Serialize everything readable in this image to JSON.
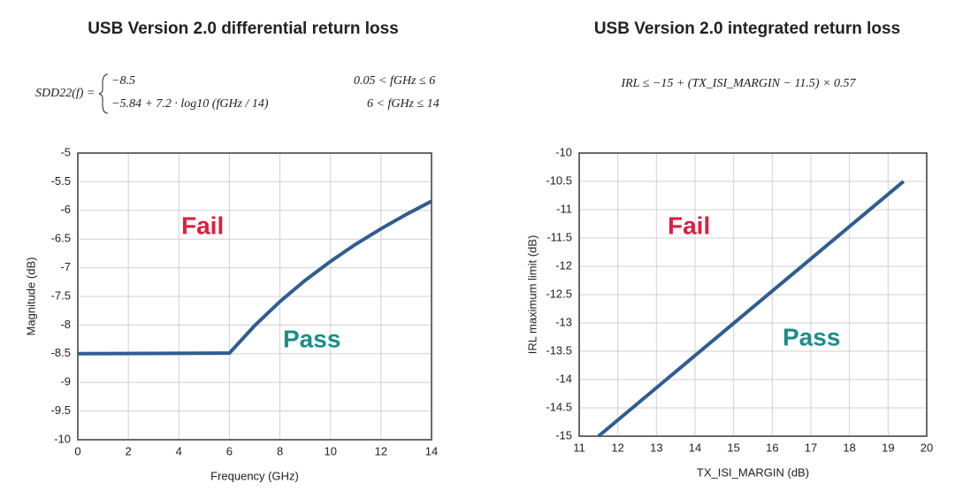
{
  "chart_data": [
    {
      "type": "line",
      "title": "USB Version 2.0 differential return loss",
      "formula": [
        "SDD22(f) =",
        "−8.5",
        "0.05 < fGHz ≤ 6",
        "−5.84 + 7.2 · log10 (fGHz / 14)",
        "6 < fGHz ≤ 14"
      ],
      "x": [
        0,
        6,
        7,
        8,
        9,
        10,
        11,
        12,
        13,
        14
      ],
      "series": [
        {
          "color": "#2f5d8f",
          "values": [
            -8.5,
            -8.49,
            -8.01,
            -7.59,
            -7.22,
            -6.89,
            -6.59,
            -6.32,
            -6.07,
            -5.84
          ]
        }
      ],
      "xlim": [
        0,
        14
      ],
      "xticks": [
        0,
        2,
        4,
        6,
        8,
        10,
        12,
        14
      ],
      "ylim": [
        -10,
        -5
      ],
      "yticks": [
        -5,
        -5.5,
        -6,
        -6.5,
        -7,
        -7.5,
        -8,
        -8.5,
        -9,
        -9.5,
        -10
      ],
      "xlabel": "Frequency (GHz)",
      "ylabel": "Magnitude (dB)",
      "grid": true,
      "annotations": [
        "Fail",
        "Pass"
      ]
    },
    {
      "type": "line",
      "title": "USB Version 2.0 integrated return loss",
      "formula": [
        "IRL ≤ −15 + (TX_ISI_MARGIN − 11.5) × 0.57"
      ],
      "x": [
        11.5,
        19.4
      ],
      "series": [
        {
          "color": "#2f5d8f",
          "values": [
            -15,
            -10.5
          ]
        }
      ],
      "xlim": [
        11,
        20
      ],
      "xticks": [
        11,
        12,
        13,
        14,
        15,
        16,
        17,
        18,
        19,
        20
      ],
      "ylim": [
        -15,
        -10
      ],
      "yticks": [
        -10,
        -10.5,
        -11,
        -11.5,
        -12,
        -12.5,
        -13,
        -13.5,
        -14,
        -14.5,
        -15
      ],
      "xlabel": "TX_ISI_MARGIN (dB)",
      "ylabel": "IRL maximum limit (dB)",
      "grid": true,
      "annotations": [
        "Fail",
        "Pass"
      ]
    }
  ]
}
